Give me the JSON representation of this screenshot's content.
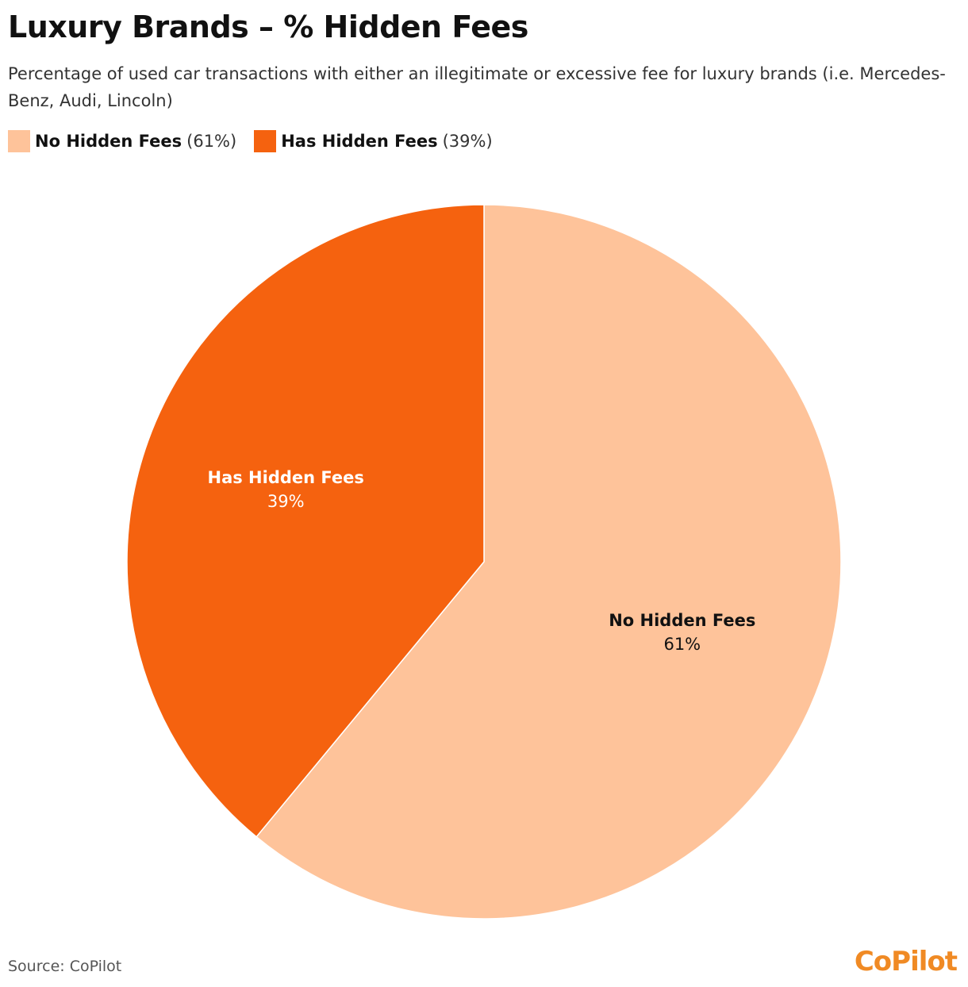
{
  "chart_data": {
    "type": "pie",
    "title": "Luxury Brands – % Hidden Fees",
    "subtitle": "Percentage of used car transactions with either an illegitimate or excessive fee for luxury brands (i.e. Mercedes-Benz, Audi, Lincoln)",
    "categories": [
      "No Hidden Fees",
      "Has Hidden Fees"
    ],
    "values": [
      61,
      39
    ],
    "value_labels": [
      "61%",
      "39%"
    ],
    "legend_value_labels": [
      "(61%)",
      "(39%)"
    ],
    "colors": [
      "#fec39a",
      "#f5620f"
    ],
    "label_colors": [
      "#111111",
      "#ffffff"
    ],
    "source": "Source: CoPilot",
    "logo": "CoPilot"
  }
}
